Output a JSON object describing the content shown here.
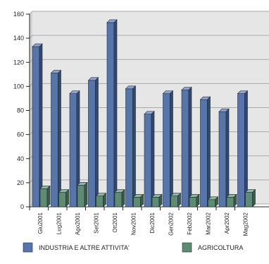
{
  "colors": {
    "plot_background": "#e6e6e6",
    "grid": "#a8a8a8",
    "axis": "#222222",
    "series_industria": "#5875aa",
    "series_industria_top": "#8fa4cc",
    "series_industria_side": "#33486e",
    "series_agricoltura": "#5e8c72",
    "series_agricoltura_top": "#8fb69f",
    "series_agricoltura_side": "#3b5a48"
  },
  "chart_data": {
    "type": "bar",
    "title": "",
    "xlabel": "",
    "ylabel": "",
    "ylim": [
      0,
      160
    ],
    "yticks": [
      0,
      20,
      40,
      60,
      80,
      100,
      120,
      140,
      160
    ],
    "grid": true,
    "legend_position": "bottom",
    "categories": [
      "Giu2001",
      "Lug2001",
      "Ago2001",
      "Set2001",
      "Ott2001",
      "Nov2001",
      "Dic2001",
      "Gen2002",
      "Feb2002",
      "Mar2002",
      "Apr2002",
      "Mag2002"
    ],
    "series": [
      {
        "name": "INDUSTRIA E ALTRE ATTIVITA'",
        "values": [
          133,
          111,
          94,
          105,
          153,
          98,
          77,
          94,
          97,
          89,
          79,
          94
        ]
      },
      {
        "name": "AGRICOLTURA",
        "values": [
          15,
          12,
          18,
          9,
          12,
          8,
          8,
          9,
          8,
          6,
          8,
          12
        ]
      }
    ]
  }
}
